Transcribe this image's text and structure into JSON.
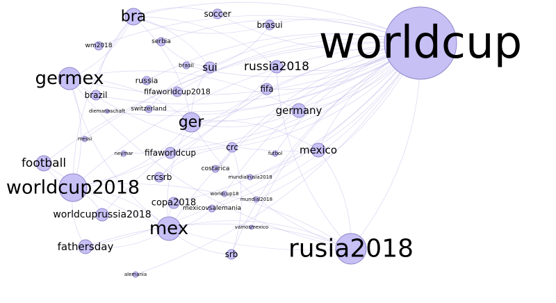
{
  "graph": {
    "nodes": [
      {
        "id": "worldcup",
        "label": "worldcup",
        "weight": 10
      },
      {
        "id": "rusia2018",
        "label": "rusia2018",
        "weight": 7
      },
      {
        "id": "worldcup2018",
        "label": "worldcup2018",
        "weight": 6
      },
      {
        "id": "germex",
        "label": "germex",
        "weight": 6
      },
      {
        "id": "mex",
        "label": "mex",
        "weight": 6
      },
      {
        "id": "ger",
        "label": "ger",
        "weight": 5
      },
      {
        "id": "bra",
        "label": "bra",
        "weight": 5
      },
      {
        "id": "russia2018",
        "label": "russia2018",
        "weight": 4
      },
      {
        "id": "football",
        "label": "football",
        "weight": 4
      },
      {
        "id": "fathersday",
        "label": "fathersday",
        "weight": 4
      },
      {
        "id": "mexico",
        "label": "mexico",
        "weight": 4
      },
      {
        "id": "germany",
        "label": "germany",
        "weight": 4
      },
      {
        "id": "worldcuprussia2018",
        "label": "worldcuprussia2018",
        "weight": 4
      },
      {
        "id": "copa2018",
        "label": "copa2018",
        "weight": 3
      },
      {
        "id": "sui",
        "label": "sui",
        "weight": 3
      },
      {
        "id": "fifa",
        "label": "fifa",
        "weight": 3
      },
      {
        "id": "brasui",
        "label": "brasui",
        "weight": 3
      },
      {
        "id": "soccer",
        "label": "soccer",
        "weight": 3
      },
      {
        "id": "srb",
        "label": "srb",
        "weight": 3
      },
      {
        "id": "crc",
        "label": "crc",
        "weight": 3
      },
      {
        "id": "crcsrb",
        "label": "crcsrb",
        "weight": 3
      },
      {
        "id": "fifaworldcup",
        "label": "fifaworldcup",
        "weight": 3
      },
      {
        "id": "fifaworldcup2018",
        "label": "fifaworldcup2018",
        "weight": 2.5
      },
      {
        "id": "brazil",
        "label": "brazil",
        "weight": 2.5
      },
      {
        "id": "russia",
        "label": "russia",
        "weight": 2.5
      },
      {
        "id": "switzerland",
        "label": "switzerland",
        "weight": 2
      },
      {
        "id": "costarica",
        "label": "costarica",
        "weight": 2
      },
      {
        "id": "mexicovsalemania",
        "label": "mexicovsalemania",
        "weight": 2
      },
      {
        "id": "serbia",
        "label": "serbia",
        "weight": 2
      },
      {
        "id": "brasil",
        "label": "brasil",
        "weight": 2
      },
      {
        "id": "wm2018",
        "label": "wm2018",
        "weight": 2
      },
      {
        "id": "diemannschaft",
        "label": "diemannschaft",
        "weight": 1
      },
      {
        "id": "messi",
        "label": "messi",
        "weight": 1
      },
      {
        "id": "neymar",
        "label": "neymar",
        "weight": 1
      },
      {
        "id": "futbol",
        "label": "futbol",
        "weight": 1
      },
      {
        "id": "mundialrusia2018",
        "label": "mundialrusia2018",
        "weight": 1
      },
      {
        "id": "worldcup18",
        "label": "worldcup18",
        "weight": 1
      },
      {
        "id": "mundial2018",
        "label": "mundial2018",
        "weight": 1
      },
      {
        "id": "vamosmexico",
        "label": "vamosmexico",
        "weight": 1
      },
      {
        "id": "alemania",
        "label": "alemania",
        "weight": 1
      }
    ],
    "edges": [
      [
        "worldcup",
        "rusia2018"
      ],
      [
        "worldcup",
        "worldcup2018"
      ],
      [
        "worldcup",
        "germex"
      ],
      [
        "worldcup",
        "mex"
      ],
      [
        "worldcup",
        "ger"
      ],
      [
        "worldcup",
        "bra"
      ],
      [
        "worldcup",
        "russia2018"
      ],
      [
        "worldcup",
        "football"
      ],
      [
        "worldcup",
        "fathersday"
      ],
      [
        "worldcup",
        "mexico"
      ],
      [
        "worldcup",
        "germany"
      ],
      [
        "worldcup",
        "worldcuprussia2018"
      ],
      [
        "worldcup",
        "copa2018"
      ],
      [
        "worldcup",
        "sui"
      ],
      [
        "worldcup",
        "fifa"
      ],
      [
        "worldcup",
        "brasui"
      ],
      [
        "worldcup",
        "soccer"
      ],
      [
        "worldcup",
        "srb"
      ],
      [
        "worldcup",
        "crc"
      ],
      [
        "worldcup",
        "crcsrb"
      ],
      [
        "worldcup",
        "fifaworldcup"
      ],
      [
        "worldcup",
        "fifaworldcup2018"
      ],
      [
        "worldcup",
        "brazil"
      ],
      [
        "worldcup",
        "russia"
      ],
      [
        "worldcup",
        "switzerland"
      ],
      [
        "worldcup",
        "costarica"
      ],
      [
        "worldcup",
        "mexicovsalemania"
      ],
      [
        "worldcup",
        "serbia"
      ],
      [
        "worldcup",
        "brasil"
      ],
      [
        "worldcup",
        "wm2018"
      ],
      [
        "worldcup",
        "diemannschaft"
      ],
      [
        "worldcup",
        "messi"
      ],
      [
        "worldcup",
        "neymar"
      ],
      [
        "worldcup",
        "futbol"
      ],
      [
        "worldcup",
        "mundialrusia2018"
      ],
      [
        "worldcup",
        "worldcup18"
      ],
      [
        "worldcup",
        "mundial2018"
      ],
      [
        "worldcup",
        "vamosmexico"
      ],
      [
        "worldcup",
        "alemania"
      ],
      [
        "rusia2018",
        "worldcup2018"
      ],
      [
        "rusia2018",
        "germex"
      ],
      [
        "rusia2018",
        "mex"
      ],
      [
        "rusia2018",
        "ger"
      ],
      [
        "rusia2018",
        "mexico"
      ],
      [
        "rusia2018",
        "russia2018"
      ],
      [
        "rusia2018",
        "fathersday"
      ],
      [
        "rusia2018",
        "football"
      ],
      [
        "worldcup2018",
        "germex"
      ],
      [
        "worldcup2018",
        "mex"
      ],
      [
        "worldcup2018",
        "ger"
      ],
      [
        "worldcup2018",
        "bra"
      ],
      [
        "worldcup2018",
        "russia2018"
      ],
      [
        "worldcup2018",
        "football"
      ],
      [
        "worldcup2018",
        "fathersday"
      ],
      [
        "worldcup2018",
        "worldcuprussia2018"
      ],
      [
        "germex",
        "mex"
      ],
      [
        "germex",
        "ger"
      ],
      [
        "germex",
        "bra"
      ],
      [
        "germex",
        "germany"
      ],
      [
        "germex",
        "mexico"
      ],
      [
        "mex",
        "ger"
      ],
      [
        "mex",
        "srb"
      ],
      [
        "mex",
        "copa2018"
      ],
      [
        "mex",
        "mexicovsalemania"
      ],
      [
        "mex",
        "fathersday"
      ],
      [
        "ger",
        "bra"
      ],
      [
        "ger",
        "sui"
      ],
      [
        "ger",
        "germany"
      ],
      [
        "ger",
        "mexico"
      ],
      [
        "ger",
        "fifa"
      ],
      [
        "bra",
        "sui"
      ],
      [
        "bra",
        "brasui"
      ],
      [
        "bra",
        "soccer"
      ],
      [
        "bra",
        "brazil"
      ],
      [
        "bra",
        "russia2018"
      ],
      [
        "sui",
        "brasui"
      ],
      [
        "sui",
        "serbia"
      ],
      [
        "sui",
        "switzerland"
      ],
      [
        "crc",
        "srb"
      ],
      [
        "crc",
        "crcsrb"
      ],
      [
        "crc",
        "costarica"
      ]
    ]
  }
}
